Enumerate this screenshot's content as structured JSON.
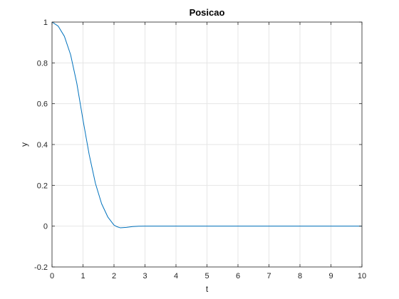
{
  "chart_data": {
    "type": "line",
    "title": "Posicao",
    "xlabel": "t",
    "ylabel": "y",
    "xlim": [
      0,
      10
    ],
    "ylim": [
      -0.2,
      1
    ],
    "grid": true,
    "x_ticks": [
      0,
      1,
      2,
      3,
      4,
      5,
      6,
      7,
      8,
      9,
      10
    ],
    "x_tick_labels": [
      "0",
      "1",
      "2",
      "3",
      "4",
      "5",
      "6",
      "7",
      "8",
      "9",
      "10"
    ],
    "y_ticks": [
      -0.2,
      0,
      0.2,
      0.4,
      0.6,
      0.8,
      1
    ],
    "y_tick_labels": [
      "-0.2",
      "0",
      "0.2",
      "0.4",
      "0.6",
      "0.8",
      "1"
    ],
    "line_color": "#0072BD",
    "series": [
      {
        "x": [
          0,
          0.2,
          0.4,
          0.6,
          0.8,
          1.0,
          1.2,
          1.4,
          1.6,
          1.8,
          2.0,
          2.1,
          2.2,
          2.4,
          2.6,
          2.8,
          3.0,
          3.5,
          4.0,
          5.0,
          6.0,
          7.0,
          8.0,
          9.0,
          10.0
        ],
        "y": [
          1.0,
          0.98,
          0.93,
          0.84,
          0.7,
          0.52,
          0.35,
          0.21,
          0.11,
          0.045,
          0.005,
          -0.003,
          -0.008,
          -0.006,
          -0.002,
          -0.0005,
          0.0,
          0.0,
          0.0,
          0.0,
          0.0,
          0.0,
          0.0,
          0.0,
          0.0
        ]
      }
    ]
  }
}
